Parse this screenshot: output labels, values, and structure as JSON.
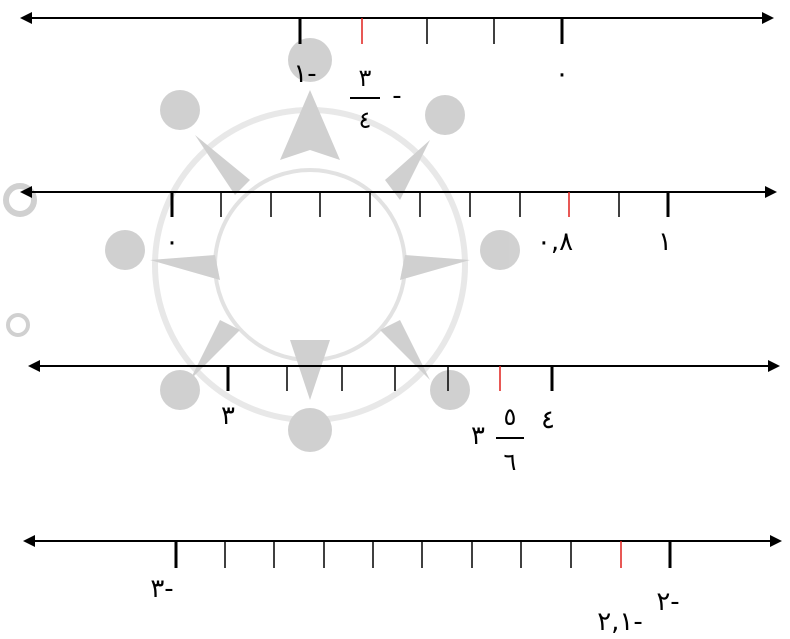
{
  "number_lines": [
    {
      "id": "line-1",
      "labels": {
        "minus_one": "١-",
        "zero": "٠"
      },
      "marked_point": {
        "minus_sign": "-",
        "numerator": "٣",
        "denominator": "٤"
      }
    },
    {
      "id": "line-2",
      "labels": {
        "zero": "٠",
        "one": "١"
      },
      "marked_point": {
        "value": "٠,٨"
      }
    },
    {
      "id": "line-3",
      "labels": {
        "three": "٣",
        "four": "٤"
      },
      "marked_point": {
        "whole": "٣",
        "numerator": "٥",
        "denominator": "٦"
      }
    },
    {
      "id": "line-4",
      "labels": {
        "minus_three": "٣-",
        "minus_two": "٢-"
      },
      "marked_point": {
        "value": "٢,١-"
      }
    }
  ],
  "colors": {
    "axis": "#000000",
    "marked_tick": "#e0201c",
    "watermark": "#bdbdbd"
  }
}
